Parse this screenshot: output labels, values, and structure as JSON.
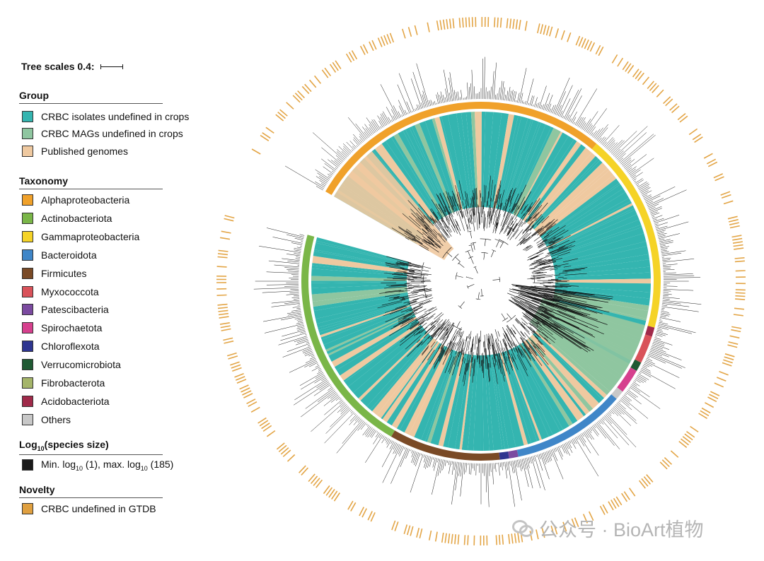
{
  "scale": {
    "label": "Tree scales 0.4:"
  },
  "group": {
    "title": "Group",
    "items": [
      {
        "label": "CRBC isolates undefined in crops",
        "color": "#34b5b0"
      },
      {
        "label": "CRBC MAGs undefined in crops",
        "color": "#8fc6a0"
      },
      {
        "label": "Published genomes",
        "color": "#efc9a0"
      }
    ]
  },
  "taxonomy": {
    "title": "Taxonomy",
    "items": [
      {
        "label": "Alphaproteobacteria",
        "color": "#f0a12a"
      },
      {
        "label": "Actinobacteriota",
        "color": "#7ab648"
      },
      {
        "label": "Gammaproteobacteria",
        "color": "#f5d327"
      },
      {
        "label": "Bacteroidota",
        "color": "#3f86c8"
      },
      {
        "label": "Firmicutes",
        "color": "#7a4a26"
      },
      {
        "label": "Myxococcota",
        "color": "#d9525a"
      },
      {
        "label": "Patescibacteria",
        "color": "#7b4aa0"
      },
      {
        "label": "Spirochaetota",
        "color": "#d6408e"
      },
      {
        "label": "Chloroflexota",
        "color": "#2e3590"
      },
      {
        "label": "Verrucomicrobiota",
        "color": "#1f5a33"
      },
      {
        "label": "Fibrobacterota",
        "color": "#a5b56a"
      },
      {
        "label": "Acidobacteriota",
        "color": "#a02a4a"
      },
      {
        "label": "Others",
        "color": "#c8c8c8"
      }
    ]
  },
  "species_size": {
    "title_main": "Log",
    "title_sub": "10",
    "title_rest": "(species size)",
    "item_a": "Min. log",
    "item_b": " (1), max. log",
    "item_c": " (185)",
    "sub": "10",
    "color": "#1a1a1a"
  },
  "novelty": {
    "title": "Novelty",
    "item": "CRBC undefined in GTDB",
    "color": "#e0a040"
  },
  "watermark": {
    "text": "公众号 · BioArt植物"
  },
  "tree_colors": {
    "isolate": "#34b5b0",
    "mag": "#8fc6a0",
    "published": "#efc9a0",
    "novelty": "#e3a546",
    "branch": "#111111"
  },
  "taxonomy_ring": [
    {
      "clade": "Alphaproteobacteria",
      "color": "#f0a12a",
      "from_deg": -60,
      "to_deg": 40
    },
    {
      "clade": "Gammaproteobacteria",
      "color": "#f5d327",
      "from_deg": 40,
      "to_deg": 105
    },
    {
      "clade": "Acidobacteriota",
      "color": "#a02a4a",
      "from_deg": 105,
      "to_deg": 108
    },
    {
      "clade": "Myxococcota",
      "color": "#d9525a",
      "from_deg": 108,
      "to_deg": 117
    },
    {
      "clade": "Verrucomicrobiota",
      "color": "#1f5a33",
      "from_deg": 117,
      "to_deg": 120
    },
    {
      "clade": "Spirochaetota",
      "color": "#d6408e",
      "from_deg": 120,
      "to_deg": 128
    },
    {
      "clade": "Others",
      "color": "#c8c8c8",
      "from_deg": 128,
      "to_deg": 131
    },
    {
      "clade": "Bacteroidota",
      "color": "#3f86c8",
      "from_deg": 131,
      "to_deg": 168
    },
    {
      "clade": "Patescibacteria",
      "color": "#7b4aa0",
      "from_deg": 168,
      "to_deg": 171
    },
    {
      "clade": "Chloroflexota",
      "color": "#2e3590",
      "from_deg": 171,
      "to_deg": 174
    },
    {
      "clade": "Firmicutes",
      "color": "#7a4a26",
      "from_deg": 174,
      "to_deg": 210
    },
    {
      "clade": "Actinobacteriota",
      "color": "#7ab648",
      "from_deg": 210,
      "to_deg": 285
    }
  ]
}
